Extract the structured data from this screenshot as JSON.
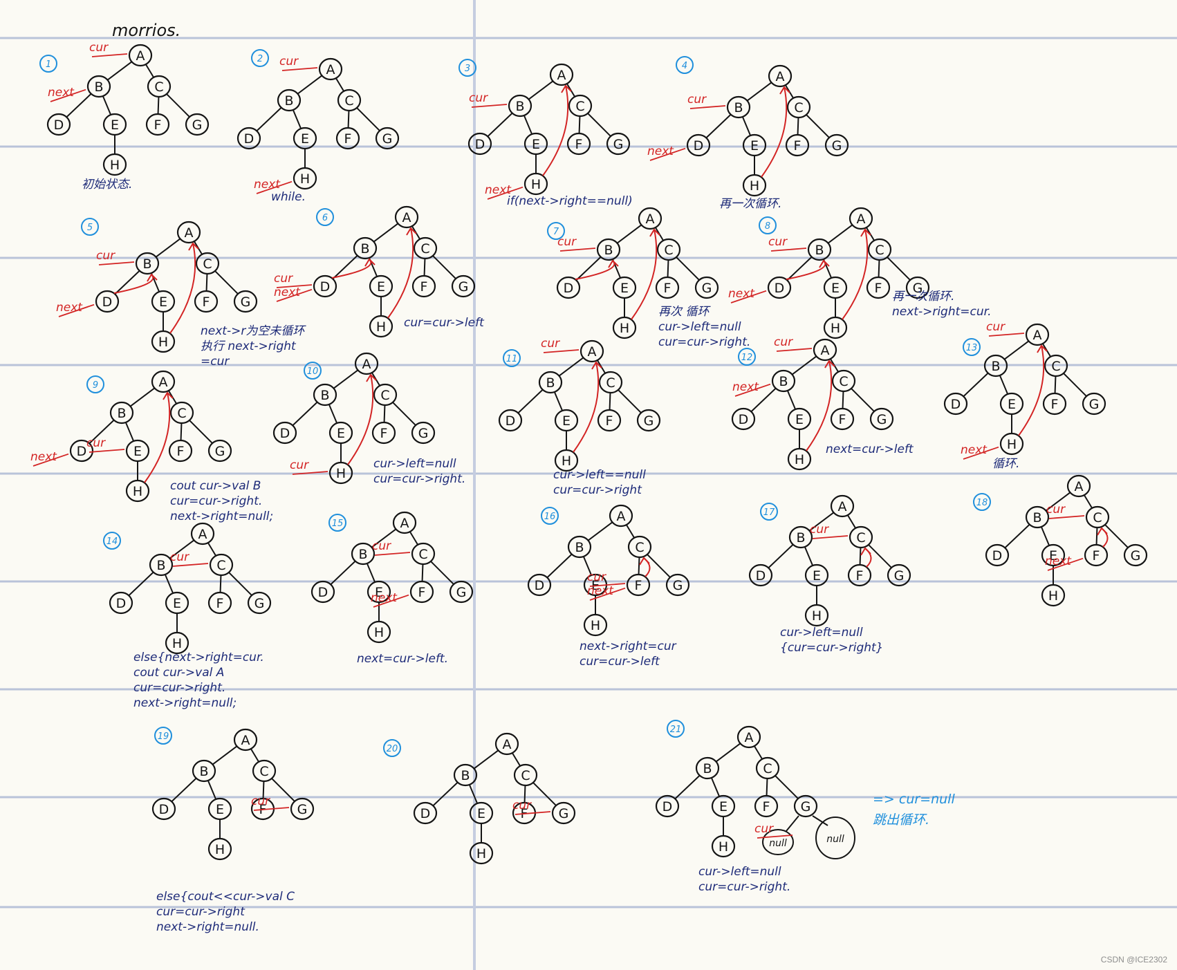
{
  "title": "morrios.",
  "colors": {
    "ink": "#141414",
    "pointer": "#d32424",
    "note": "#1d2a78",
    "step": "#1f8fdc",
    "rule": "#b9c3d9"
  },
  "labels": {
    "cur": "cur",
    "next": "next",
    "right": "right",
    "null": "null"
  },
  "panels": [
    {
      "step": "1",
      "cur": "A",
      "next": "B",
      "arrow": null,
      "notes": [
        "初始状态."
      ]
    },
    {
      "step": "2",
      "cur": "A",
      "next": "H",
      "arrow": null,
      "notes": [
        "while."
      ]
    },
    {
      "step": "3",
      "cur": "B",
      "next": "H",
      "arrow": [
        "H",
        "A"
      ],
      "notes": [
        "if(next->right==null)"
      ]
    },
    {
      "step": "4",
      "cur": "B",
      "next": "D",
      "arrow": [
        "H",
        "A"
      ],
      "notes": [
        "再一次循环."
      ]
    },
    {
      "step": "5",
      "cur": "B",
      "next": "D",
      "arrow": [
        "H",
        "A"
      ],
      "arrow2": [
        "D",
        "B"
      ],
      "notes": [
        "next->r为空未循环",
        "执行 next->right",
        "=cur"
      ]
    },
    {
      "step": "6",
      "cur": "D",
      "next": "D",
      "arrow": [
        "H",
        "A"
      ],
      "arrow2": [
        "D",
        "B"
      ],
      "notes": [
        "cur=cur->left"
      ]
    },
    {
      "step": "7",
      "cur": "B",
      "next": null,
      "arrow": [
        "H",
        "A"
      ],
      "arrow2": [
        "D",
        "B"
      ],
      "notes": [
        "再次 循环",
        "cur->left=null",
        "cur=cur->right."
      ]
    },
    {
      "step": "8",
      "cur": "B",
      "next": "D",
      "arrow": [
        "H",
        "A"
      ],
      "arrow2": [
        "D",
        "B"
      ],
      "notes": [
        "再一次循环.",
        "next->right=cur."
      ]
    },
    {
      "step": "9",
      "cur": "E",
      "next": "D",
      "arrow": [
        "H",
        "A"
      ],
      "notes": [
        "cout cur->val B",
        "cur=cur->right.",
        "next->right=null;"
      ]
    },
    {
      "step": "10",
      "cur": "H",
      "next": null,
      "arrow": [
        "H",
        "A"
      ],
      "notes": [
        "cur->left=null",
        "cur=cur->right."
      ]
    },
    {
      "step": "11",
      "cur": "A",
      "next": null,
      "arrow": [
        "H",
        "A"
      ],
      "notes": [
        "cur->left==null",
        "cur=cur->right"
      ]
    },
    {
      "step": "12",
      "cur": "A",
      "next": "B",
      "arrow": [
        "H",
        "A"
      ],
      "notes": [
        "next=cur->left"
      ]
    },
    {
      "step": "13",
      "cur": "A",
      "next": "H",
      "arrow": [
        "H",
        "A"
      ],
      "notes": [
        "循环."
      ]
    },
    {
      "step": "14",
      "cur": "C",
      "next": null,
      "arrow": null,
      "notes": [
        "else{next->right=cur.",
        "cout cur->val A",
        "cur=cur->right.",
        "next->right=null;"
      ]
    },
    {
      "step": "15",
      "cur": "C",
      "next": "F",
      "arrow": null,
      "notes": [
        "next=cur->left."
      ]
    },
    {
      "step": "16",
      "cur": "F",
      "next": "F",
      "arrow": [
        "F",
        "C"
      ],
      "notes": [
        "next->right=cur",
        "cur=cur->left"
      ]
    },
    {
      "step": "17",
      "cur": "C",
      "next": null,
      "arrow": [
        "F",
        "C"
      ],
      "notes": [
        "cur->left=null",
        "{cur=cur->right}"
      ]
    },
    {
      "step": "18",
      "cur": "C",
      "next": "F",
      "arrow": [
        "F",
        "C"
      ],
      "notes": []
    },
    {
      "step": "19",
      "cur": "G",
      "next": null,
      "arrow": null,
      "notes": [
        "else{cout<<cur->val C",
        "cur=cur->right",
        "next->right=null."
      ]
    },
    {
      "step": "20",
      "cur": "G",
      "next": null,
      "arrow": null,
      "notes": []
    },
    {
      "step": "21",
      "cur": "null",
      "next": null,
      "arrow": null,
      "notes": [
        "cur->left=null",
        "cur=cur->right."
      ]
    }
  ],
  "final_note": [
    "=> cur=null",
    "跳出循环."
  ],
  "watermark": "CSDN @ICE2302"
}
